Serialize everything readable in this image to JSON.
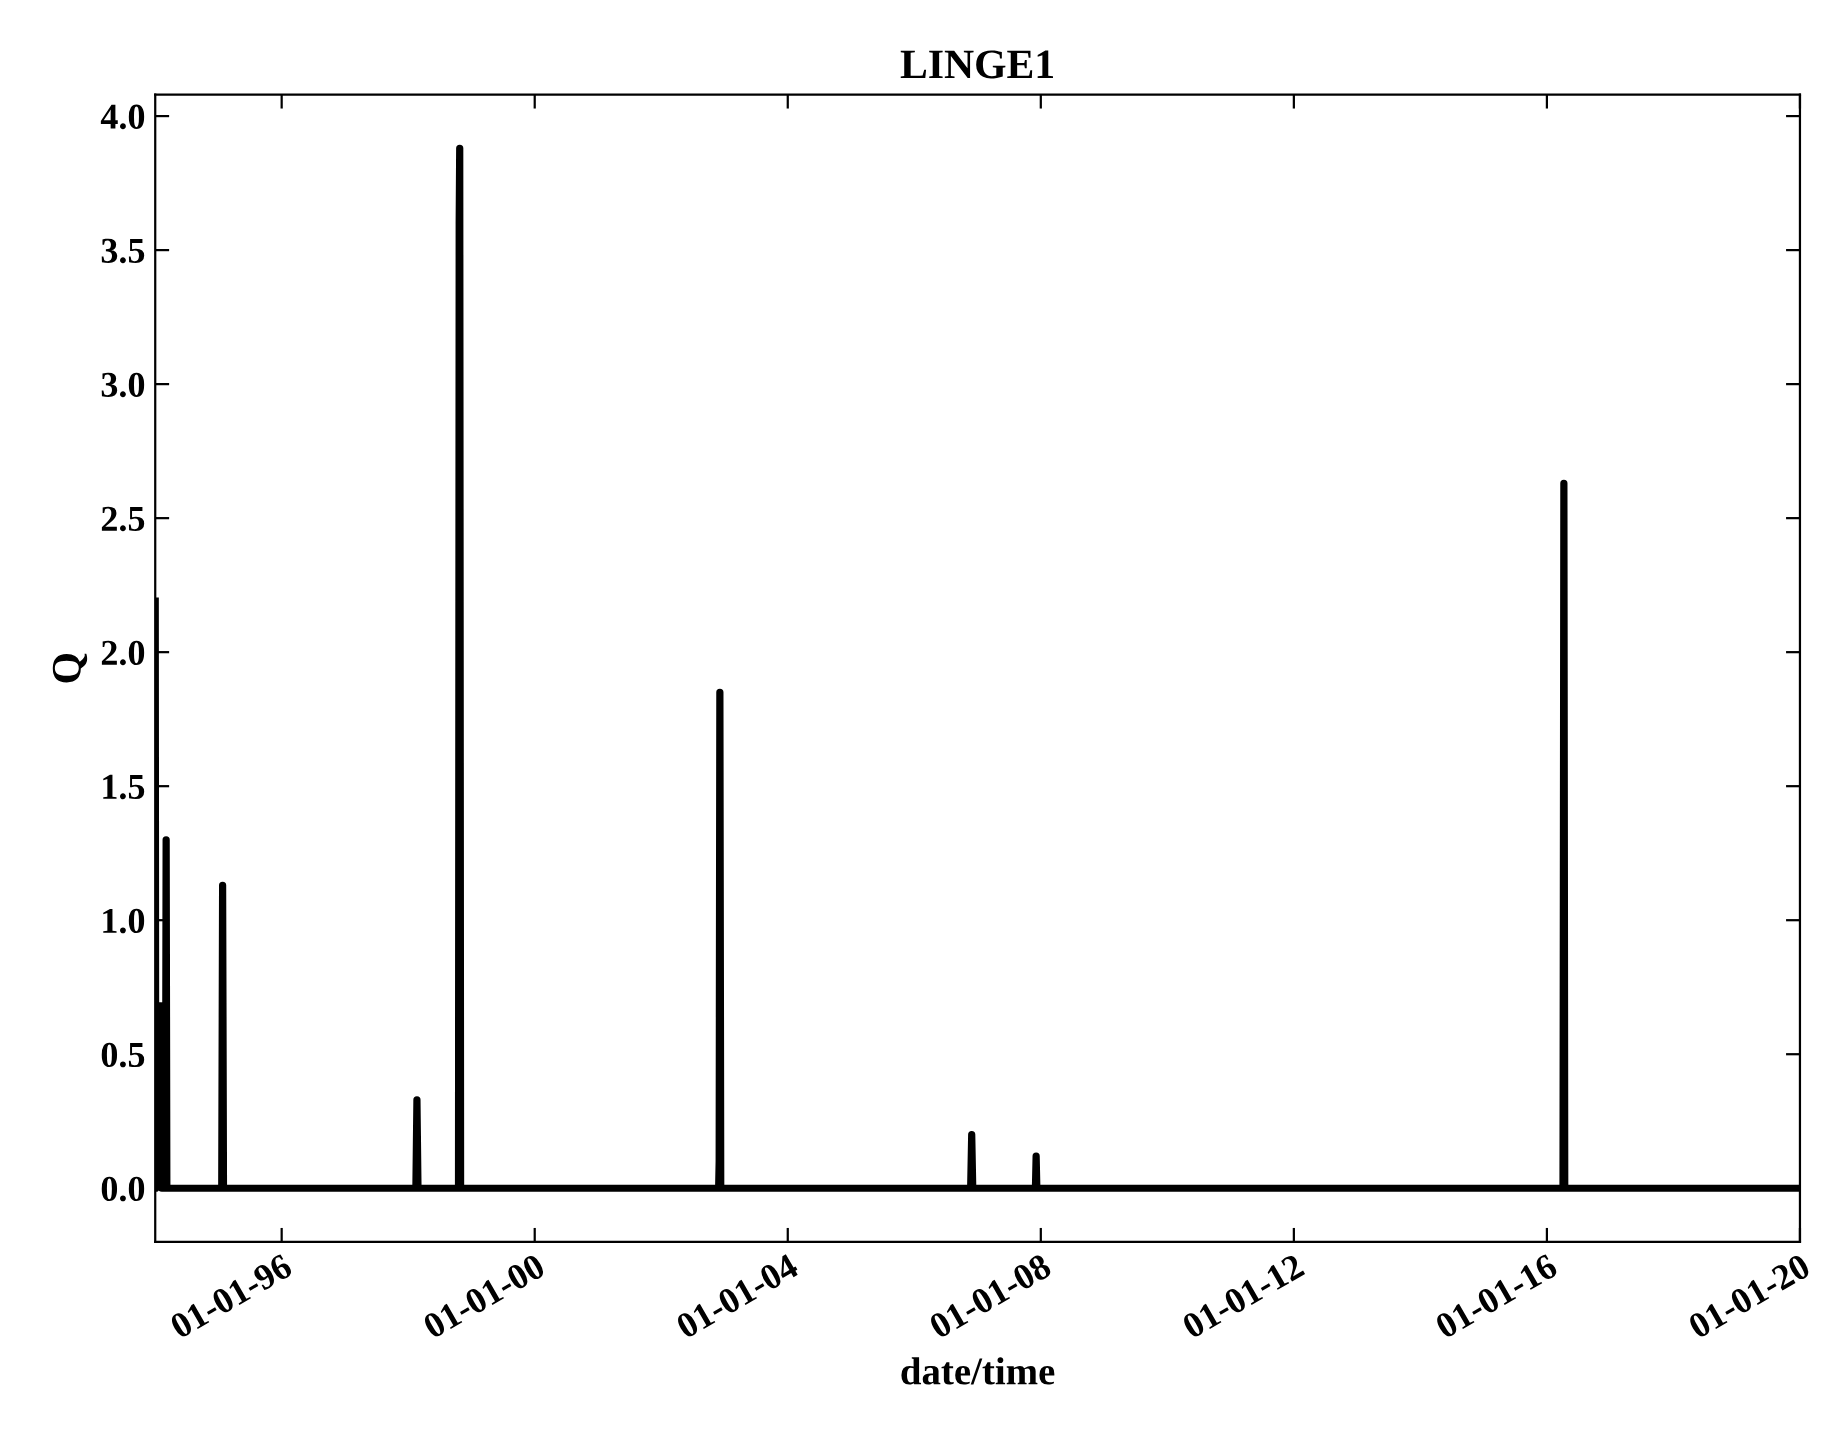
{
  "chart_data": {
    "type": "line",
    "title": "LINGE1",
    "xlabel": "date/time",
    "ylabel": "Q",
    "x": [
      "1994-01-01",
      "1994-01-04",
      "1994-01-06",
      "1994-02-05",
      "1994-02-08",
      "1994-03-01",
      "1994-03-05",
      "1994-03-09",
      "1995-01-20",
      "1995-01-25",
      "1995-01-30",
      "1998-02-14",
      "1998-02-20",
      "1998-02-26",
      "1998-10-18",
      "1998-10-22",
      "1998-10-25",
      "1998-10-30",
      "2002-11-28",
      "2002-12-01",
      "2002-12-05",
      "2002-12-10",
      "2006-11-22",
      "2006-11-28",
      "2006-12-04",
      "2007-12-01",
      "2007-12-05",
      "2007-12-09",
      "2016-04-03",
      "2016-04-08",
      "2016-04-13",
      "2020-01-01"
    ],
    "series": [
      {
        "color": "#000000",
        "values": [
          2.19,
          0.0,
          0.68,
          0.68,
          0.0,
          0.0,
          1.3,
          0.0,
          0.0,
          1.13,
          0.0,
          0.0,
          0.33,
          0.0,
          0.0,
          3.6,
          3.88,
          0.0,
          0.0,
          0.1,
          1.85,
          0.0,
          0.0,
          0.2,
          0.0,
          0.0,
          0.12,
          0.0,
          0.0,
          2.63,
          0.0,
          0.0
        ]
      }
    ],
    "xlim": [
      "1994-01-01",
      "2020-01-01"
    ],
    "xticks": [
      {
        "value": "1996-01-01",
        "label": "01-01-96"
      },
      {
        "value": "2000-01-01",
        "label": "01-01-00"
      },
      {
        "value": "2004-01-01",
        "label": "01-01-04"
      },
      {
        "value": "2008-01-01",
        "label": "01-01-08"
      },
      {
        "value": "2012-01-01",
        "label": "01-01-12"
      },
      {
        "value": "2016-01-01",
        "label": "01-01-16"
      },
      {
        "value": "2020-01-01",
        "label": "01-01-20"
      }
    ],
    "ylim": [
      -0.2,
      4.08
    ],
    "yticks": [
      {
        "value": 0,
        "label": "0.0"
      },
      0.5,
      {
        "value": 1,
        "label": "1.0"
      },
      1.5,
      {
        "value": 2,
        "label": "2.0"
      },
      2.5,
      {
        "value": 3,
        "label": "3.0"
      },
      3.5,
      {
        "value": 4,
        "label": "4.0"
      }
    ],
    "grid": false,
    "legend": false,
    "marker": "none",
    "line_style": "solid"
  }
}
